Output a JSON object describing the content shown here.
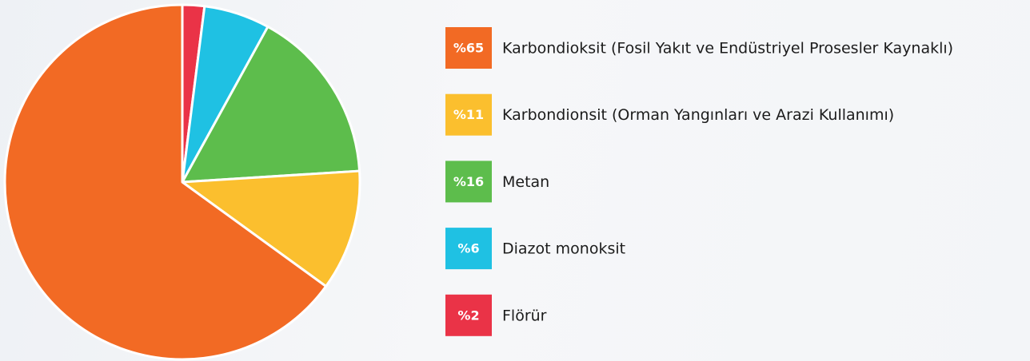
{
  "chart_data": {
    "type": "pie",
    "categories": [
      "Karbondioksit (Fosil Yakıt ve Endüstriyel Prosesler Kaynaklı)",
      "Karbondionsit (Orman Yangınları ve Arazi Kullanımı)",
      "Metan",
      "Diazot monoksit",
      "Flörür"
    ],
    "values": [
      65,
      11,
      16,
      6,
      2
    ],
    "value_labels": [
      "%65",
      "%11",
      "%16",
      "%6",
      "%2"
    ],
    "colors": [
      "#f26a24",
      "#fbbf2e",
      "#5dbd4c",
      "#1fc1e3",
      "#ea3347"
    ]
  }
}
